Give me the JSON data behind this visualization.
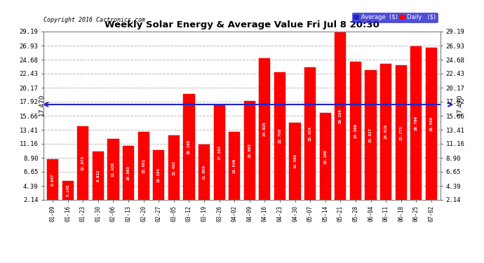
{
  "title": "Weekly Solar Energy & Average Value Fri Jul 8 20:30",
  "copyright": "Copyright 2016 Cartronics.com",
  "categories": [
    "01-09",
    "01-16",
    "01-23",
    "01-30",
    "02-06",
    "02-13",
    "02-20",
    "02-27",
    "03-05",
    "03-12",
    "03-19",
    "03-26",
    "04-02",
    "04-09",
    "04-16",
    "04-23",
    "04-30",
    "05-07",
    "05-14",
    "05-21",
    "05-28",
    "06-04",
    "06-11",
    "06-18",
    "06-25",
    "07-02"
  ],
  "values": [
    8.647,
    5.145,
    13.973,
    9.912,
    11.938,
    10.803,
    13.081,
    10.154,
    12.492,
    19.108,
    11.05,
    17.393,
    13.049,
    18.065,
    24.925,
    22.7,
    14.59,
    23.424,
    16.108,
    29.188,
    24.396,
    23.027,
    24.019,
    23.773,
    26.796,
    26.569
  ],
  "average": 17.47,
  "bar_color": "#ff0000",
  "avg_line_color": "#2222cc",
  "bar_edge_color": "#cc0000",
  "background_color": "#ffffff",
  "plot_bg_color": "#ffffff",
  "grid_color": "#bbbbbb",
  "ytick_labels": [
    "2.14",
    "4.39",
    "6.65",
    "8.90",
    "11.16",
    "13.41",
    "15.66",
    "17.92",
    "20.17",
    "22.43",
    "24.68",
    "26.93",
    "29.19"
  ],
  "ytick_values": [
    2.14,
    4.39,
    6.65,
    8.9,
    11.16,
    13.41,
    15.66,
    17.92,
    20.17,
    22.43,
    24.68,
    26.93,
    29.19
  ],
  "ymin": 2.14,
  "ymax": 29.19,
  "avg_label": "17.470",
  "legend_avg_label": "Average  ($)",
  "legend_daily_label": "Daily   ($)"
}
